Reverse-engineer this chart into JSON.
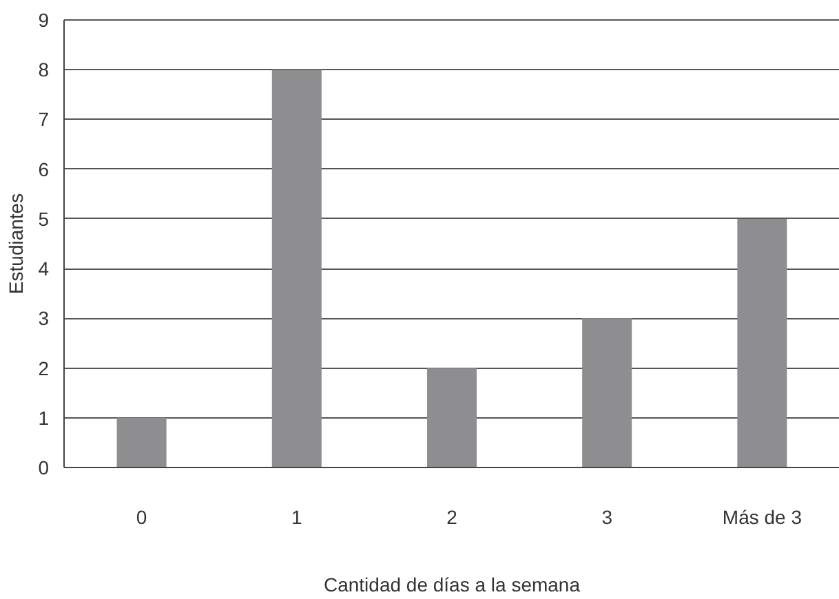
{
  "chart_data": {
    "type": "bar",
    "xlabel": "Cantidad de días a la semana",
    "ylabel": "Estudiantes",
    "categories": [
      "0",
      "1",
      "2",
      "3",
      "Más de 3"
    ],
    "values": [
      1,
      8,
      2,
      3,
      5
    ],
    "color": "#8e8e90",
    "ylim": [
      0,
      9
    ],
    "yticks": [
      0,
      1,
      2,
      3,
      4,
      5,
      6,
      7,
      8,
      9
    ],
    "grid": "y"
  }
}
